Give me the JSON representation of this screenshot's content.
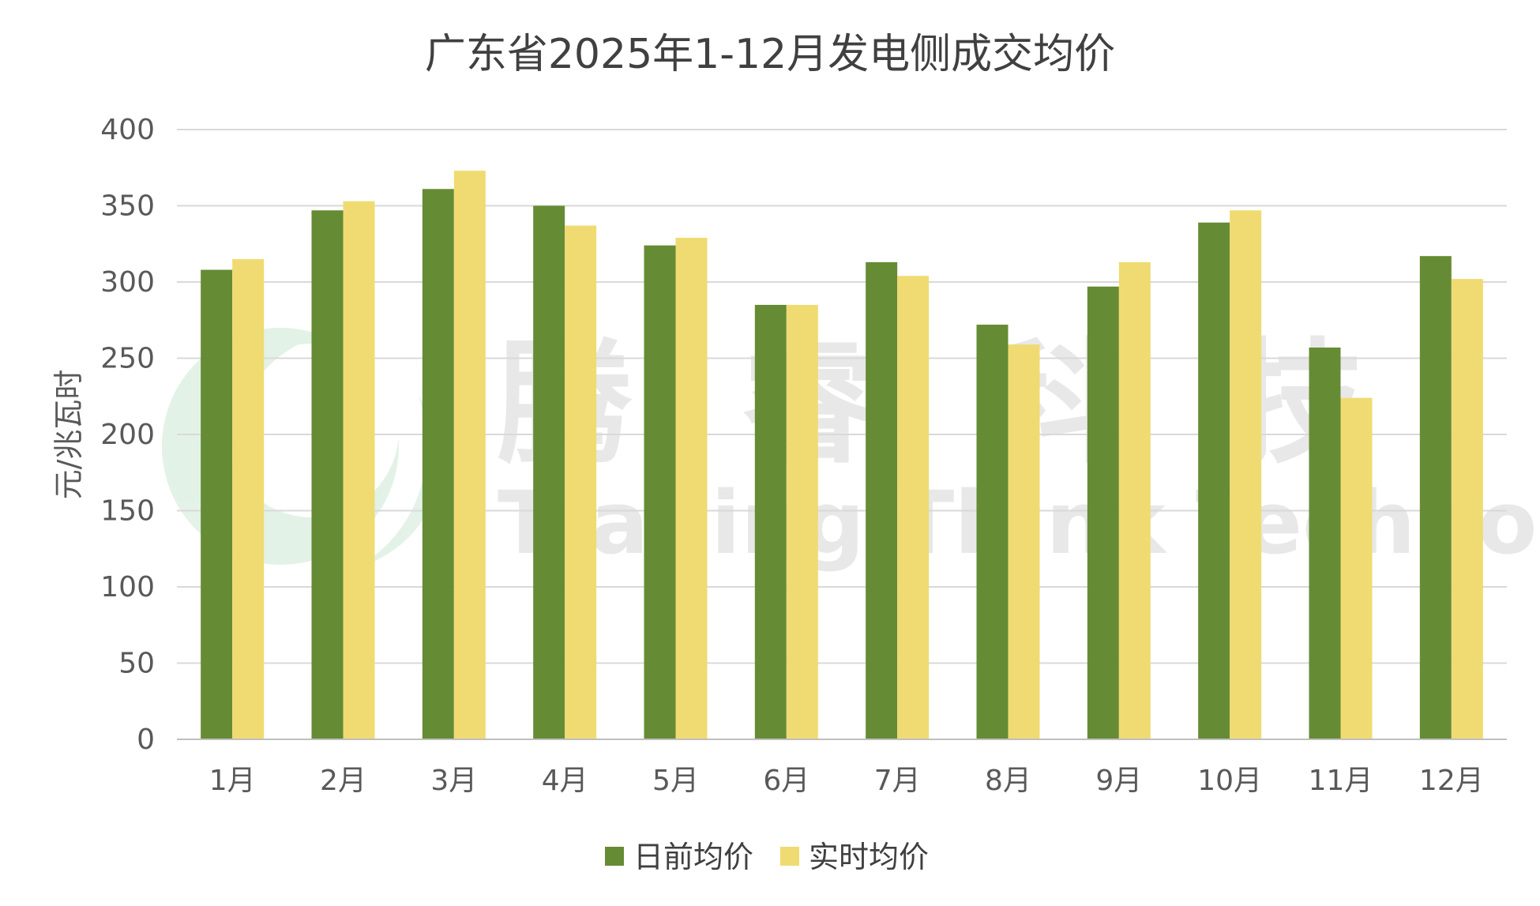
{
  "chart_data": {
    "type": "bar",
    "title": "广东省2025年1-12月发电侧成交均价",
    "ylabel": "元/兆瓦时",
    "xlabel": "",
    "ylim": [
      0,
      400
    ],
    "yticks": [
      0,
      50,
      100,
      150,
      200,
      250,
      300,
      350,
      400
    ],
    "grid": true,
    "legend_position": "bottom",
    "categories": [
      "1月",
      "2月",
      "3月",
      "4月",
      "5月",
      "6月",
      "7月",
      "8月",
      "9月",
      "10月",
      "11月",
      "12月"
    ],
    "series": [
      {
        "name": "日前均价",
        "color": "#668b35",
        "values": [
          308,
          347,
          361,
          350,
          324,
          285,
          313,
          272,
          297,
          339,
          257,
          317
        ]
      },
      {
        "name": "实时均价",
        "color": "#efdb72",
        "values": [
          315,
          353,
          373,
          337,
          329,
          285,
          304,
          259,
          313,
          347,
          224,
          302
        ]
      }
    ]
  },
  "watermark": {
    "brand_cn": "腾 睿 科 技",
    "brand_en": "Trading Think Technology",
    "logo_color": "#2e9e4a"
  }
}
